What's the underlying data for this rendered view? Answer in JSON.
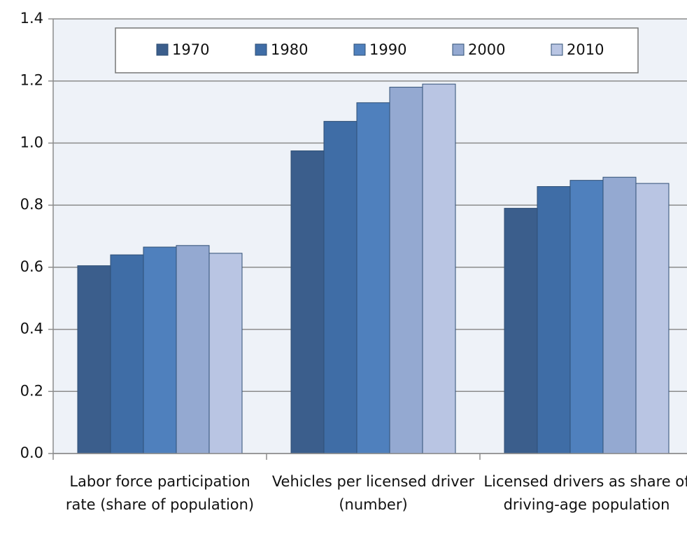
{
  "chart_data": {
    "type": "bar",
    "categories": [
      "Labor force participation rate (share of population)",
      "Vehicles per licensed driver (number)",
      "Licensed drivers as share of driving-age population"
    ],
    "series": [
      {
        "name": "1970",
        "color": "#3b5e8c",
        "values": [
          0.605,
          0.975,
          0.79
        ]
      },
      {
        "name": "1980",
        "color": "#3f6da6",
        "values": [
          0.64,
          1.07,
          0.86
        ]
      },
      {
        "name": "1990",
        "color": "#4f80bd",
        "values": [
          0.665,
          1.13,
          0.88
        ]
      },
      {
        "name": "2000",
        "color": "#94a9d1",
        "values": [
          0.67,
          1.18,
          0.89
        ]
      },
      {
        "name": "2010",
        "color": "#b9c5e3",
        "values": [
          0.645,
          1.19,
          0.87
        ]
      }
    ],
    "ylim": [
      0,
      1.4
    ],
    "yticks": [
      {
        "value": 0,
        "label": "0.0"
      },
      {
        "value": 0.2,
        "label": "0.2"
      },
      {
        "value": 0.4,
        "label": "0.4"
      },
      {
        "value": 0.6,
        "label": "0.6"
      },
      {
        "value": 0.8,
        "label": "0.8"
      },
      {
        "value": 1,
        "label": "1.0"
      },
      {
        "value": 1.2,
        "label": "1.2"
      },
      {
        "value": 1.4,
        "label": "1.4"
      }
    ],
    "grid": true,
    "legend": "top"
  }
}
